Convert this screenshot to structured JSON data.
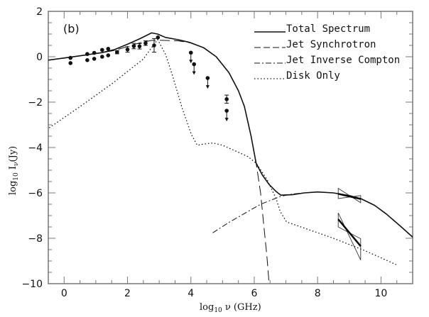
{
  "chart_data": {
    "type": "line",
    "panel_label": "(b)",
    "xlabel": "log10 ν (GHz)",
    "xlabel_parts": {
      "pre": "log",
      "sub": "10",
      "post": " ν (GHz)"
    },
    "ylabel": "log10 Iν(Jy)",
    "ylabel_parts": {
      "pre": "log",
      "sub": "10",
      "mid": " I",
      "sub2": "ν",
      "post": "(Jy)"
    },
    "xlim": [
      -0.5,
      11
    ],
    "ylim": [
      -10,
      2
    ],
    "xticks": [
      0,
      2,
      4,
      6,
      8,
      10
    ],
    "xtick_labels": [
      "0",
      "2",
      "4",
      "6",
      "8",
      "10"
    ],
    "yticks": [
      2,
      0,
      -2,
      -4,
      -6,
      -8,
      -10
    ],
    "ytick_labels": [
      "2",
      "0",
      "−2",
      "−4",
      "−6",
      "−8",
      "−10"
    ],
    "legend_position": "top-right",
    "legend": [
      {
        "label": "Total Spectrum",
        "style": "solid"
      },
      {
        "label": "Jet Synchrotron",
        "style": "dashed"
      },
      {
        "label": "Jet Inverse Compton",
        "style": "dashdot"
      },
      {
        "label": "Disk Only",
        "style": "dotted"
      }
    ],
    "series": [
      {
        "name": "Total Spectrum",
        "style": "solid",
        "x": [
          -0.5,
          0.2,
          0.7,
          1.2,
          1.6,
          2.0,
          2.4,
          2.76,
          2.95,
          3.2,
          3.6,
          3.96,
          4.4,
          4.8,
          5.2,
          5.5,
          5.69,
          5.9,
          6.06,
          6.25,
          6.47,
          6.7,
          6.84,
          7.2,
          7.58,
          8.0,
          8.5,
          9.0,
          9.36,
          9.8,
          10.17,
          10.6,
          11.0
        ],
        "y": [
          -0.15,
          -0.02,
          0.08,
          0.18,
          0.32,
          0.55,
          0.8,
          1.05,
          1.0,
          0.85,
          0.75,
          0.63,
          0.4,
          0.0,
          -0.7,
          -1.5,
          -2.19,
          -3.5,
          -4.69,
          -5.2,
          -5.63,
          -5.95,
          -6.1,
          -6.08,
          -6.0,
          -5.96,
          -6.0,
          -6.12,
          -6.25,
          -6.55,
          -6.93,
          -7.45,
          -7.95
        ]
      },
      {
        "name": "Jet Synchrotron",
        "style": "dashed",
        "x": [
          -0.5,
          0.2,
          0.7,
          1.2,
          1.6,
          2.0,
          2.4,
          2.76,
          2.95,
          3.2,
          3.6,
          3.96,
          4.4,
          4.8,
          5.2,
          5.5,
          5.69,
          5.9,
          6.06,
          6.2,
          6.3,
          6.4,
          6.47
        ],
        "y": [
          -0.15,
          -0.02,
          0.08,
          0.18,
          0.28,
          0.45,
          0.62,
          0.72,
          0.73,
          0.72,
          0.7,
          0.62,
          0.4,
          0.0,
          -0.7,
          -1.5,
          -2.19,
          -3.5,
          -4.69,
          -6.0,
          -7.4,
          -8.8,
          -10.0
        ]
      },
      {
        "name": "Jet Inverse Compton",
        "style": "dashdot",
        "x": [
          4.69,
          5.2,
          5.7,
          6.2,
          6.84,
          7.2,
          7.58,
          8.0,
          8.5,
          9.0,
          9.36,
          9.8,
          10.17,
          10.6,
          11.0
        ],
        "y": [
          -7.76,
          -7.3,
          -6.9,
          -6.5,
          -6.15,
          -6.05,
          -6.0,
          -5.96,
          -6.0,
          -6.12,
          -6.25,
          -6.55,
          -6.93,
          -7.45,
          -7.95
        ]
      },
      {
        "name": "Disk Only",
        "style": "dotted",
        "x": [
          -0.47,
          0.5,
          1.0,
          1.5,
          2.0,
          2.5,
          2.95,
          3.2,
          3.42,
          3.73,
          4.02,
          4.2,
          4.4,
          4.69,
          5.0,
          5.42,
          5.8,
          6.06,
          6.4,
          6.69,
          6.82,
          7.02,
          7.58,
          8.5,
          9.5,
          10.53
        ],
        "y": [
          -3.13,
          -2.2,
          -1.7,
          -1.2,
          -0.65,
          -0.1,
          0.76,
          0.1,
          -0.83,
          -2.29,
          -3.44,
          -3.9,
          -3.85,
          -3.8,
          -3.9,
          -4.16,
          -4.4,
          -4.69,
          -5.4,
          -6.25,
          -6.82,
          -7.28,
          -7.55,
          -8.0,
          -8.55,
          -9.19
        ]
      }
    ],
    "data_points": [
      {
        "x": 0.2,
        "y": -0.05,
        "err": 0,
        "upper_limit": false
      },
      {
        "x": 0.2,
        "y": -0.28,
        "err": 0,
        "upper_limit": false
      },
      {
        "x": 0.73,
        "y": 0.12,
        "err": 0,
        "upper_limit": false
      },
      {
        "x": 0.73,
        "y": -0.15,
        "err": 0,
        "upper_limit": false
      },
      {
        "x": 0.95,
        "y": 0.17,
        "err": 0,
        "upper_limit": false
      },
      {
        "x": 0.95,
        "y": -0.09,
        "err": 0,
        "upper_limit": false
      },
      {
        "x": 1.2,
        "y": 0.3,
        "err": 0,
        "upper_limit": false
      },
      {
        "x": 1.2,
        "y": 0.0,
        "err": 0,
        "upper_limit": false
      },
      {
        "x": 1.39,
        "y": 0.35,
        "err": 0,
        "upper_limit": false
      },
      {
        "x": 1.39,
        "y": 0.06,
        "err": 0,
        "upper_limit": false
      },
      {
        "x": 1.67,
        "y": 0.2,
        "err": 0.07,
        "upper_limit": false
      },
      {
        "x": 2.0,
        "y": 0.32,
        "err": 0.12,
        "upper_limit": false
      },
      {
        "x": 2.2,
        "y": 0.47,
        "err": 0.12,
        "upper_limit": false
      },
      {
        "x": 2.38,
        "y": 0.46,
        "err": 0.12,
        "upper_limit": false
      },
      {
        "x": 2.57,
        "y": 0.6,
        "err": 0.1,
        "upper_limit": false
      },
      {
        "x": 2.84,
        "y": 0.5,
        "err": 0.3,
        "upper_limit": false
      },
      {
        "x": 2.96,
        "y": 0.85,
        "err": 0,
        "upper_limit": false
      },
      {
        "x": 4.0,
        "y": 0.18,
        "err": 0,
        "upper_limit": true
      },
      {
        "x": 4.1,
        "y": -0.33,
        "err": 0,
        "upper_limit": true
      },
      {
        "x": 4.53,
        "y": -0.94,
        "err": 0,
        "upper_limit": true
      },
      {
        "x": 5.13,
        "y": -1.87,
        "err": 0.18,
        "upper_limit": false
      },
      {
        "x": 5.13,
        "y": -2.38,
        "err": 0,
        "upper_limit": true
      }
    ],
    "bowties": [
      {
        "x": [
          8.65,
          9.36
        ],
        "center": [
          -6.04,
          -6.27
        ],
        "left_range": [
          -5.8,
          -6.25
        ],
        "right_range": [
          -6.12,
          -6.43
        ]
      },
      {
        "x": [
          8.65,
          9.36
        ],
        "center": [
          -7.16,
          -8.35
        ],
        "left_range": [
          -6.88,
          -7.5
        ],
        "right_range": [
          -8.02,
          -8.96
        ]
      }
    ]
  }
}
